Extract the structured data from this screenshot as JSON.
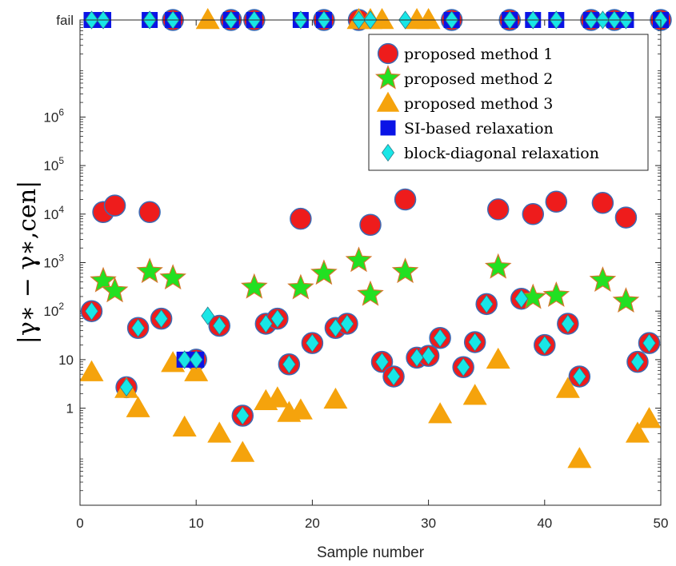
{
  "chart_data": {
    "type": "scatter",
    "xlabel": "Sample number",
    "ylabel": "|γ∗ − γ∗,cen|",
    "yscale": "log",
    "xlim": [
      0,
      50
    ],
    "ylim": [
      0.01,
      100000000
    ],
    "fail_label": "fail",
    "fail_value": 100000000,
    "xticks": [
      0,
      10,
      20,
      30,
      40,
      50
    ],
    "yticks": [
      {
        "value": 1,
        "label": "1"
      },
      {
        "value": 10,
        "label": "10"
      },
      {
        "value": 100,
        "label": "10",
        "exp": "2"
      },
      {
        "value": 1000,
        "label": "10",
        "exp": "3"
      },
      {
        "value": 10000,
        "label": "10",
        "exp": "4"
      },
      {
        "value": 100000,
        "label": "10",
        "exp": "5"
      },
      {
        "value": 1000000,
        "label": "10",
        "exp": "6"
      }
    ],
    "legend_position": "top-right",
    "series": [
      {
        "name": "proposed method 1",
        "marker": "circle",
        "color": "#ee1c1c",
        "points": [
          [
            1,
            100
          ],
          [
            2,
            11000
          ],
          [
            3,
            15000
          ],
          [
            4,
            2.7
          ],
          [
            5,
            45
          ],
          [
            6,
            11000
          ],
          [
            7,
            70
          ],
          [
            8,
            "fail"
          ],
          [
            10,
            10
          ],
          [
            12,
            50
          ],
          [
            13,
            "fail"
          ],
          [
            14,
            0.7
          ],
          [
            15,
            "fail"
          ],
          [
            16,
            55
          ],
          [
            17,
            70
          ],
          [
            18,
            8
          ],
          [
            19,
            8000
          ],
          [
            20,
            22
          ],
          [
            21,
            "fail"
          ],
          [
            22,
            45
          ],
          [
            23,
            55
          ],
          [
            24,
            "fail"
          ],
          [
            25,
            6000
          ],
          [
            26,
            9
          ],
          [
            27,
            4.5
          ],
          [
            28,
            20000
          ],
          [
            29,
            11
          ],
          [
            30,
            12
          ],
          [
            31,
            28
          ],
          [
            32,
            "fail"
          ],
          [
            33,
            7
          ],
          [
            34,
            23
          ],
          [
            35,
            140
          ],
          [
            36,
            12500
          ],
          [
            37,
            "fail"
          ],
          [
            38,
            180
          ],
          [
            39,
            10000
          ],
          [
            40,
            20
          ],
          [
            41,
            18000
          ],
          [
            42,
            55
          ],
          [
            43,
            4.5
          ],
          [
            44,
            "fail"
          ],
          [
            45,
            17000
          ],
          [
            46,
            "fail"
          ],
          [
            47,
            8500
          ],
          [
            48,
            9
          ],
          [
            49,
            22
          ],
          [
            50,
            "fail"
          ]
        ]
      },
      {
        "name": "proposed method 2",
        "marker": "star",
        "color": "#22e022",
        "points": [
          [
            2,
            420
          ],
          [
            3,
            260
          ],
          [
            6,
            650
          ],
          [
            8,
            480
          ],
          [
            15,
            310
          ],
          [
            19,
            300
          ],
          [
            21,
            600
          ],
          [
            24,
            1100
          ],
          [
            25,
            220
          ],
          [
            28,
            650
          ],
          [
            36,
            800
          ],
          [
            39,
            190
          ],
          [
            41,
            210
          ],
          [
            45,
            430
          ],
          [
            47,
            160
          ]
        ]
      },
      {
        "name": "proposed method 3",
        "marker": "triangle",
        "color": "#f5a30c",
        "points": [
          [
            1,
            5.5
          ],
          [
            4,
            2.5
          ],
          [
            5,
            1
          ],
          [
            8,
            8.5
          ],
          [
            9,
            0.4
          ],
          [
            10,
            5.5
          ],
          [
            11,
            "fail"
          ],
          [
            12,
            0.3
          ],
          [
            14,
            0.12
          ],
          [
            16,
            1.4
          ],
          [
            17,
            1.6
          ],
          [
            18,
            0.8
          ],
          [
            19,
            0.9
          ],
          [
            22,
            1.5
          ],
          [
            24,
            "fail"
          ],
          [
            25,
            "fail"
          ],
          [
            26,
            "fail"
          ],
          [
            29,
            "fail"
          ],
          [
            30,
            "fail"
          ],
          [
            31,
            0.75
          ],
          [
            34,
            1.8
          ],
          [
            36,
            10
          ],
          [
            42,
            2.5
          ],
          [
            43,
            0.09
          ],
          [
            48,
            0.3
          ],
          [
            49,
            0.6
          ]
        ]
      },
      {
        "name": "SI-based relaxation",
        "marker": "square",
        "color": "#0a14e6",
        "points": [
          [
            1,
            "fail"
          ],
          [
            2,
            "fail"
          ],
          [
            6,
            "fail"
          ],
          [
            8,
            "fail"
          ],
          [
            9,
            10
          ],
          [
            10,
            10
          ],
          [
            13,
            "fail"
          ],
          [
            15,
            "fail"
          ],
          [
            19,
            "fail"
          ],
          [
            21,
            "fail"
          ],
          [
            32,
            "fail"
          ],
          [
            37,
            "fail"
          ],
          [
            39,
            "fail"
          ],
          [
            41,
            "fail"
          ],
          [
            44,
            "fail"
          ],
          [
            46,
            "fail"
          ],
          [
            47,
            "fail"
          ],
          [
            50,
            "fail"
          ]
        ]
      },
      {
        "name": "block-diagonal relaxation",
        "marker": "diamond",
        "color": "#19e6e6",
        "points": [
          [
            1,
            100
          ],
          [
            1,
            "fail"
          ],
          [
            2,
            "fail"
          ],
          [
            4,
            2.7
          ],
          [
            5,
            45
          ],
          [
            6,
            "fail"
          ],
          [
            7,
            70
          ],
          [
            8,
            "fail"
          ],
          [
            9,
            10
          ],
          [
            10,
            10
          ],
          [
            11,
            80
          ],
          [
            12,
            50
          ],
          [
            13,
            "fail"
          ],
          [
            14,
            0.7
          ],
          [
            15,
            "fail"
          ],
          [
            16,
            55
          ],
          [
            17,
            70
          ],
          [
            18,
            8
          ],
          [
            19,
            "fail"
          ],
          [
            20,
            22
          ],
          [
            21,
            "fail"
          ],
          [
            22,
            45
          ],
          [
            23,
            55
          ],
          [
            24,
            "fail"
          ],
          [
            25,
            "fail"
          ],
          [
            26,
            9
          ],
          [
            27,
            4.5
          ],
          [
            28,
            "fail"
          ],
          [
            29,
            11
          ],
          [
            30,
            12
          ],
          [
            31,
            28
          ],
          [
            32,
            "fail"
          ],
          [
            33,
            7
          ],
          [
            34,
            23
          ],
          [
            35,
            140
          ],
          [
            37,
            "fail"
          ],
          [
            38,
            180
          ],
          [
            39,
            "fail"
          ],
          [
            40,
            20
          ],
          [
            41,
            "fail"
          ],
          [
            42,
            55
          ],
          [
            43,
            4.5
          ],
          [
            44,
            "fail"
          ],
          [
            45,
            "fail"
          ],
          [
            46,
            "fail"
          ],
          [
            47,
            "fail"
          ],
          [
            48,
            9
          ],
          [
            49,
            22
          ],
          [
            50,
            "fail"
          ]
        ]
      }
    ]
  }
}
